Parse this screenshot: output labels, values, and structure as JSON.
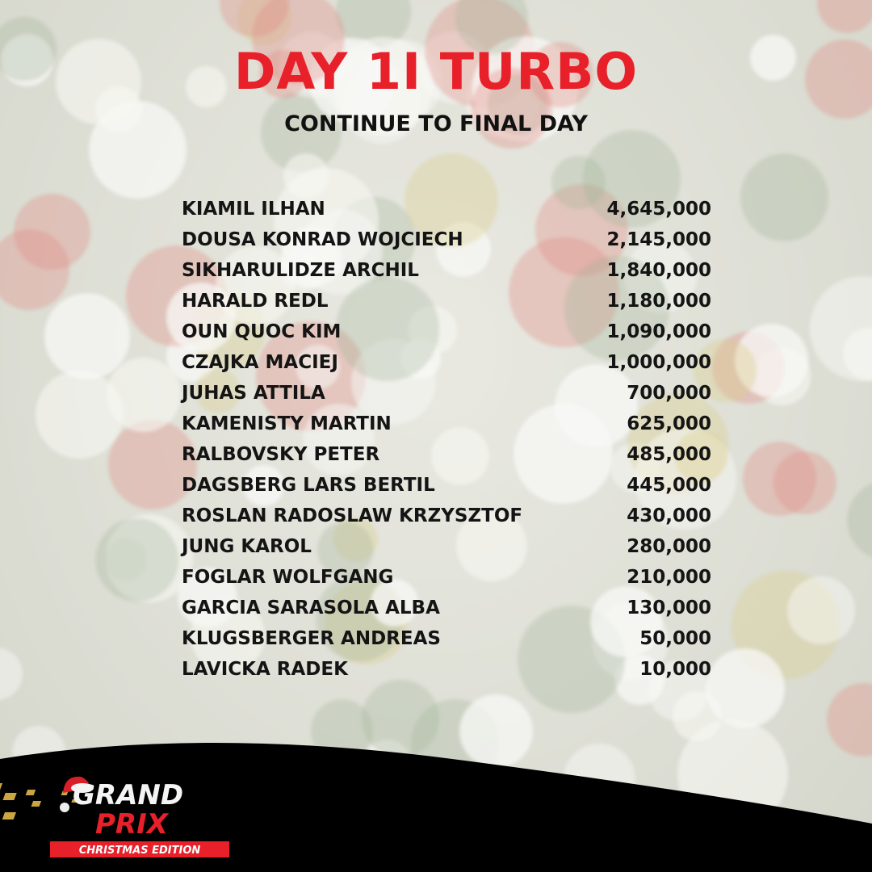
{
  "header": {
    "title": "DAY 1I TURBO",
    "subtitle": "CONTINUE TO FINAL DAY"
  },
  "players": [
    {
      "name": "KIAMIL ILHAN",
      "chips": "4,645,000"
    },
    {
      "name": "DOUSA KONRAD WOJCIECH",
      "chips": "2,145,000"
    },
    {
      "name": "SIKHARULIDZE ARCHIL",
      "chips": "1,840,000"
    },
    {
      "name": "HARALD REDL",
      "chips": "1,180,000"
    },
    {
      "name": "OUN QUOC KIM",
      "chips": "1,090,000"
    },
    {
      "name": "CZAJKA MACIEJ",
      "chips": "1,000,000"
    },
    {
      "name": "JUHAS ATTILA",
      "chips": "700,000"
    },
    {
      "name": "KAMENISTY MARTIN",
      "chips": "625,000"
    },
    {
      "name": "RALBOVSKY PETER",
      "chips": "485,000"
    },
    {
      "name": "DAGSBERG LARS BERTIL",
      "chips": "445,000"
    },
    {
      "name": "ROSLAN RADOSLAW KRZYSZTOF",
      "chips": "430,000"
    },
    {
      "name": "JUNG KAROL",
      "chips": "280,000"
    },
    {
      "name": "FOGLAR WOLFGANG",
      "chips": "210,000"
    },
    {
      "name": "GARCIA SARASOLA ALBA",
      "chips": "130,000"
    },
    {
      "name": "KLUGSBERGER ANDREAS",
      "chips": "50,000"
    },
    {
      "name": "LAVICKA RADEK",
      "chips": "10,000"
    }
  ],
  "logo": {
    "line1": "GRAND",
    "line2": "PRIX",
    "line3": "CHRISTMAS EDITION"
  },
  "colors": {
    "accent": "#e8202a",
    "text": "#141414",
    "footer": "#000000",
    "gold": "#c9a640"
  }
}
